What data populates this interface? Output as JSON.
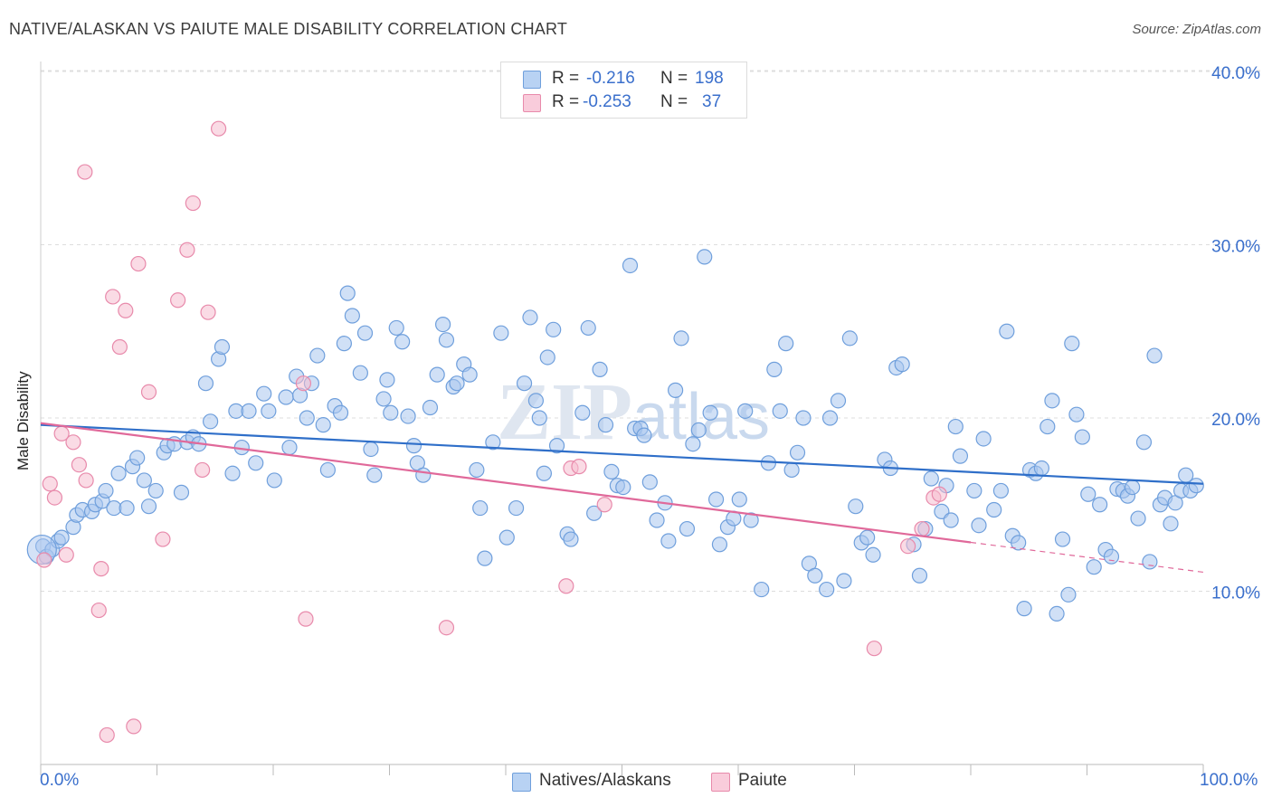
{
  "title": "NATIVE/ALASKAN VS PAIUTE MALE DISABILITY CORRELATION CHART",
  "source": "Source: ZipAtlas.com",
  "watermark": "ZIPatlas",
  "legend": {
    "rows": [
      {
        "label_r": "R =",
        "r": "-0.216",
        "label_n": "N =",
        "n": "198"
      },
      {
        "label_r": "R =",
        "r": "-0.253",
        "label_n": "N =",
        "n": "37"
      }
    ]
  },
  "bottom_legend": [
    "Natives/Alaskans",
    "Paiute"
  ],
  "x_tick_labels": {
    "left": "0.0%",
    "right": "100.0%"
  },
  "colors": {
    "blue_fill": "#a9c6ef",
    "blue_stroke": "#6f9fdc",
    "blue_line": "#2f6fc9",
    "pink_fill": "#f6bdd0",
    "pink_stroke": "#e88aab",
    "pink_line": "#e0699a",
    "tick_text": "#3a6fcc",
    "grid": "#dddddd"
  },
  "chart_data": {
    "type": "scatter",
    "title": "NATIVE/ALASKAN VS PAIUTE MALE DISABILITY CORRELATION CHART",
    "xlabel": "",
    "ylabel": "Male Disability",
    "xlim": [
      0,
      100
    ],
    "ylim": [
      0,
      40
    ],
    "y_ticks": [
      10,
      20,
      30,
      40
    ],
    "y_tick_labels": [
      "10.0%",
      "20.0%",
      "30.0%",
      "40.0%"
    ],
    "x_tick_labels": [
      "0.0%",
      "100.0%"
    ],
    "series": [
      {
        "name": "Natives/Alaskans",
        "r": -0.216,
        "n": 198,
        "trend": {
          "x": [
            0,
            100
          ],
          "y": [
            19.6,
            16.2
          ],
          "dashed_from": null
        },
        "points": [
          [
            0.2,
            12.6
          ],
          [
            0.5,
            12.0
          ],
          [
            1.0,
            12.4
          ],
          [
            1.5,
            12.9
          ],
          [
            1.8,
            13.1
          ],
          [
            2.8,
            13.7
          ],
          [
            3.1,
            14.4
          ],
          [
            3.6,
            14.7
          ],
          [
            4.4,
            14.6
          ],
          [
            4.7,
            15.0
          ],
          [
            5.3,
            15.2
          ],
          [
            5.6,
            15.8
          ],
          [
            6.3,
            14.8
          ],
          [
            6.7,
            16.8
          ],
          [
            7.4,
            14.8
          ],
          [
            7.9,
            17.2
          ],
          [
            8.3,
            17.7
          ],
          [
            8.9,
            16.4
          ],
          [
            9.3,
            14.9
          ],
          [
            9.9,
            15.8
          ],
          [
            10.6,
            18.0
          ],
          [
            10.9,
            18.4
          ],
          [
            11.5,
            18.5
          ],
          [
            12.1,
            15.7
          ],
          [
            12.6,
            18.6
          ],
          [
            13.1,
            18.9
          ],
          [
            13.6,
            18.5
          ],
          [
            14.2,
            22.0
          ],
          [
            14.6,
            19.8
          ],
          [
            15.3,
            23.4
          ],
          [
            15.6,
            24.1
          ],
          [
            16.5,
            16.8
          ],
          [
            16.8,
            20.4
          ],
          [
            17.3,
            18.3
          ],
          [
            17.9,
            20.4
          ],
          [
            18.5,
            17.4
          ],
          [
            19.2,
            21.4
          ],
          [
            19.6,
            20.4
          ],
          [
            20.1,
            16.4
          ],
          [
            21.1,
            21.2
          ],
          [
            21.4,
            18.3
          ],
          [
            22.0,
            22.4
          ],
          [
            22.3,
            21.3
          ],
          [
            22.9,
            20.0
          ],
          [
            23.3,
            22.0
          ],
          [
            23.8,
            23.6
          ],
          [
            24.3,
            19.6
          ],
          [
            24.7,
            17.0
          ],
          [
            25.3,
            20.7
          ],
          [
            25.8,
            20.3
          ],
          [
            26.1,
            24.3
          ],
          [
            26.4,
            27.2
          ],
          [
            26.8,
            25.9
          ],
          [
            27.5,
            22.6
          ],
          [
            27.9,
            24.9
          ],
          [
            28.4,
            18.2
          ],
          [
            28.7,
            16.7
          ],
          [
            29.5,
            21.1
          ],
          [
            29.8,
            22.2
          ],
          [
            30.1,
            20.3
          ],
          [
            30.6,
            25.2
          ],
          [
            31.1,
            24.4
          ],
          [
            31.6,
            20.1
          ],
          [
            32.1,
            18.4
          ],
          [
            32.4,
            17.4
          ],
          [
            32.9,
            16.7
          ],
          [
            33.5,
            20.6
          ],
          [
            34.1,
            22.5
          ],
          [
            34.6,
            25.4
          ],
          [
            34.9,
            24.5
          ],
          [
            35.5,
            21.8
          ],
          [
            35.8,
            22.0
          ],
          [
            36.4,
            23.1
          ],
          [
            36.9,
            22.5
          ],
          [
            37.5,
            17.0
          ],
          [
            37.8,
            14.8
          ],
          [
            38.2,
            11.9
          ],
          [
            38.9,
            18.6
          ],
          [
            39.6,
            24.9
          ],
          [
            40.1,
            13.1
          ],
          [
            40.9,
            14.8
          ],
          [
            41.6,
            22.0
          ],
          [
            42.1,
            25.8
          ],
          [
            42.6,
            21.0
          ],
          [
            42.9,
            20.0
          ],
          [
            43.3,
            16.8
          ],
          [
            43.6,
            23.5
          ],
          [
            44.1,
            25.1
          ],
          [
            44.4,
            18.4
          ],
          [
            45.3,
            13.3
          ],
          [
            45.6,
            13.0
          ],
          [
            46.6,
            20.3
          ],
          [
            47.1,
            25.2
          ],
          [
            47.6,
            14.5
          ],
          [
            48.1,
            22.8
          ],
          [
            48.6,
            19.6
          ],
          [
            49.1,
            16.9
          ],
          [
            49.6,
            16.1
          ],
          [
            50.1,
            16.0
          ],
          [
            50.7,
            28.8
          ],
          [
            51.1,
            19.4
          ],
          [
            51.6,
            19.4
          ],
          [
            51.9,
            19.0
          ],
          [
            52.4,
            16.3
          ],
          [
            53.0,
            14.1
          ],
          [
            53.7,
            15.1
          ],
          [
            54.0,
            12.9
          ],
          [
            54.6,
            21.6
          ],
          [
            55.1,
            24.6
          ],
          [
            55.6,
            13.6
          ],
          [
            56.1,
            18.5
          ],
          [
            56.6,
            19.3
          ],
          [
            57.1,
            29.3
          ],
          [
            57.6,
            20.3
          ],
          [
            58.1,
            15.3
          ],
          [
            58.4,
            12.7
          ],
          [
            59.1,
            13.7
          ],
          [
            59.6,
            14.2
          ],
          [
            60.1,
            15.3
          ],
          [
            60.6,
            20.4
          ],
          [
            61.1,
            14.1
          ],
          [
            62.0,
            10.1
          ],
          [
            62.6,
            17.4
          ],
          [
            63.1,
            22.8
          ],
          [
            63.6,
            20.4
          ],
          [
            64.1,
            24.3
          ],
          [
            64.6,
            17.0
          ],
          [
            65.1,
            18.0
          ],
          [
            65.6,
            20.0
          ],
          [
            66.1,
            11.6
          ],
          [
            66.6,
            10.9
          ],
          [
            67.6,
            10.1
          ],
          [
            67.9,
            20.0
          ],
          [
            68.6,
            21.0
          ],
          [
            69.1,
            10.6
          ],
          [
            69.6,
            24.6
          ],
          [
            70.1,
            14.9
          ],
          [
            70.6,
            12.8
          ],
          [
            71.1,
            13.1
          ],
          [
            71.6,
            12.1
          ],
          [
            72.6,
            17.6
          ],
          [
            73.1,
            17.1
          ],
          [
            73.6,
            22.9
          ],
          [
            74.1,
            23.1
          ],
          [
            75.1,
            12.7
          ],
          [
            75.6,
            10.9
          ],
          [
            76.1,
            13.6
          ],
          [
            76.6,
            16.5
          ],
          [
            77.5,
            14.6
          ],
          [
            77.9,
            16.1
          ],
          [
            78.3,
            14.1
          ],
          [
            78.7,
            19.5
          ],
          [
            79.1,
            17.8
          ],
          [
            80.3,
            15.8
          ],
          [
            80.7,
            13.8
          ],
          [
            81.1,
            18.8
          ],
          [
            82.0,
            14.7
          ],
          [
            82.6,
            15.8
          ],
          [
            83.1,
            25.0
          ],
          [
            83.6,
            13.2
          ],
          [
            84.1,
            12.8
          ],
          [
            84.6,
            9.0
          ],
          [
            85.1,
            17.0
          ],
          [
            85.6,
            16.8
          ],
          [
            86.1,
            17.1
          ],
          [
            86.6,
            19.5
          ],
          [
            87.0,
            21.0
          ],
          [
            87.4,
            8.7
          ],
          [
            87.9,
            13.0
          ],
          [
            88.4,
            9.8
          ],
          [
            88.7,
            24.3
          ],
          [
            89.1,
            20.2
          ],
          [
            89.6,
            18.9
          ],
          [
            90.1,
            15.6
          ],
          [
            90.6,
            11.4
          ],
          [
            91.1,
            15.0
          ],
          [
            91.6,
            12.4
          ],
          [
            92.1,
            12.0
          ],
          [
            92.6,
            15.9
          ],
          [
            93.1,
            15.8
          ],
          [
            93.5,
            15.5
          ],
          [
            93.9,
            16.0
          ],
          [
            94.4,
            14.2
          ],
          [
            94.9,
            18.6
          ],
          [
            95.4,
            11.7
          ],
          [
            95.8,
            23.6
          ],
          [
            96.3,
            15.0
          ],
          [
            96.7,
            15.4
          ],
          [
            97.2,
            13.9
          ],
          [
            97.6,
            15.1
          ],
          [
            98.1,
            15.8
          ],
          [
            98.5,
            16.7
          ],
          [
            98.9,
            15.8
          ],
          [
            99.4,
            16.1
          ]
        ]
      },
      {
        "name": "Paiute",
        "r": -0.253,
        "n": 37,
        "trend": {
          "x": [
            0,
            100
          ],
          "y": [
            19.7,
            11.1
          ],
          "dashed_from": 80
        },
        "points": [
          [
            0.3,
            11.8
          ],
          [
            0.8,
            16.2
          ],
          [
            1.2,
            15.4
          ],
          [
            1.8,
            19.1
          ],
          [
            2.2,
            12.1
          ],
          [
            2.8,
            18.6
          ],
          [
            3.3,
            17.3
          ],
          [
            3.8,
            34.2
          ],
          [
            3.9,
            16.4
          ],
          [
            5.0,
            8.9
          ],
          [
            5.2,
            11.3
          ],
          [
            5.7,
            1.7
          ],
          [
            6.2,
            27.0
          ],
          [
            6.8,
            24.1
          ],
          [
            7.3,
            26.2
          ],
          [
            8.0,
            2.2
          ],
          [
            8.4,
            28.9
          ],
          [
            9.3,
            21.5
          ],
          [
            10.5,
            13.0
          ],
          [
            11.8,
            26.8
          ],
          [
            12.6,
            29.7
          ],
          [
            13.1,
            32.4
          ],
          [
            13.9,
            17.0
          ],
          [
            14.4,
            26.1
          ],
          [
            15.3,
            36.7
          ],
          [
            22.6,
            22.0
          ],
          [
            22.8,
            8.4
          ],
          [
            34.9,
            7.9
          ],
          [
            45.2,
            10.3
          ],
          [
            45.6,
            17.1
          ],
          [
            46.3,
            17.2
          ],
          [
            48.5,
            15.0
          ],
          [
            71.7,
            6.7
          ],
          [
            74.6,
            12.6
          ],
          [
            75.8,
            13.6
          ],
          [
            76.8,
            15.4
          ],
          [
            77.3,
            15.6
          ]
        ]
      }
    ]
  }
}
